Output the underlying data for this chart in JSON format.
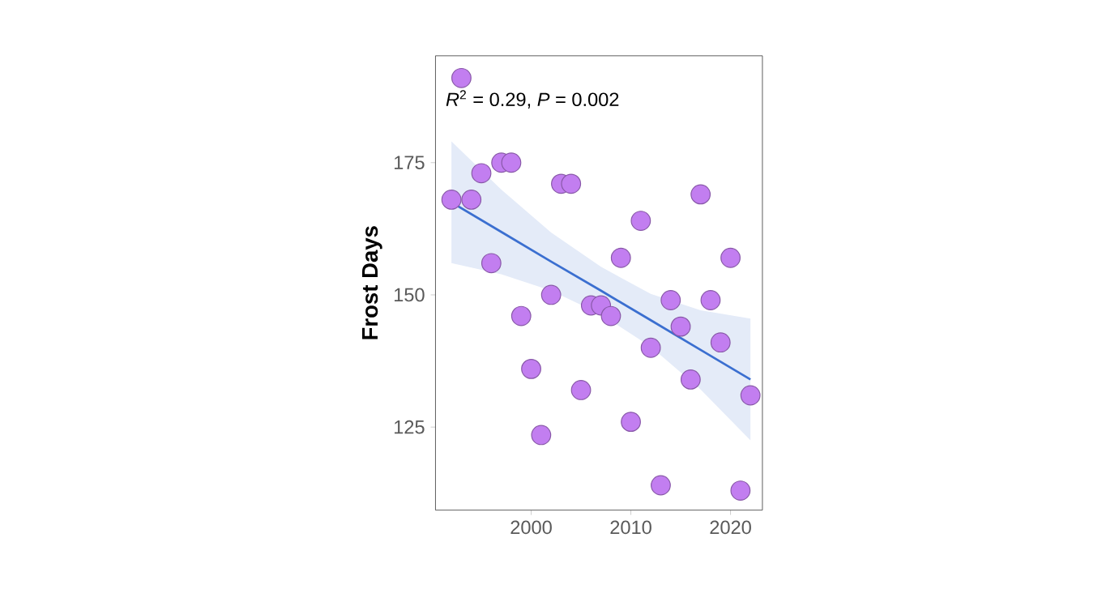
{
  "chart_data": {
    "type": "scatter",
    "ylabel": "Frost Days",
    "annotations": [
      "*R*$^{2}$ = 0.29, *P* = 0.002"
    ],
    "xlim": [
      1990.4,
      2023.2
    ],
    "ylim": [
      109.3,
      195.2
    ],
    "xticks": [
      2000,
      2010,
      2020
    ],
    "yticks": [
      125,
      150,
      175
    ],
    "series": [
      {
        "type": "line",
        "color": "#3b6fd0",
        "x": [
          1992,
          1997,
          2002,
          2007,
          2012,
          2017,
          2022
        ],
        "values": [
          167.5,
          161.9,
          156.3,
          150.8,
          145.2,
          139.6,
          134
        ],
        "lower": [
          156,
          153.9,
          150.8,
          146.3,
          140.2,
          132.1,
          122.5
        ],
        "upper": [
          179,
          169.9,
          161.8,
          155.3,
          150.2,
          147.1,
          145.5
        ]
      },
      {
        "marker": "circle",
        "color": "#c27ef0",
        "x": [
          1992,
          1993,
          1994,
          1995,
          1996,
          1997,
          1998,
          1999,
          2000,
          2001,
          2002,
          2003,
          2004,
          2005,
          2006,
          2007,
          2008,
          2009,
          2010,
          2011,
          2012,
          2013,
          2014,
          2015,
          2016,
          2017,
          2018,
          2019,
          2020,
          2021,
          2022
        ],
        "values": [
          168,
          191,
          168,
          173,
          156,
          175,
          175,
          146,
          136,
          123.5,
          150,
          171,
          171,
          132,
          148,
          148,
          146,
          157,
          126,
          164,
          140,
          114,
          149,
          144,
          134,
          169,
          149,
          141,
          157,
          113,
          131
        ]
      }
    ]
  }
}
